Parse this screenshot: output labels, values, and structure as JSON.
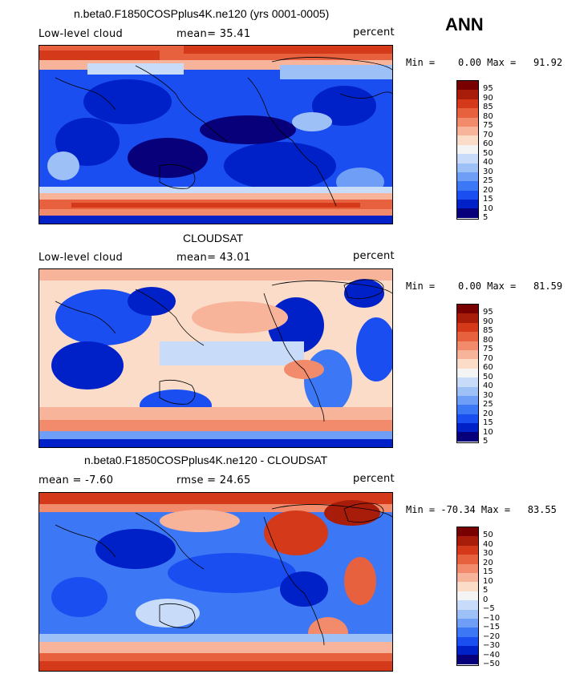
{
  "season": "ANN",
  "colors": {
    "scale": [
      "#08007a",
      "#0020c8",
      "#1a4ef0",
      "#3c78f5",
      "#6e9ef5",
      "#9dc0f7",
      "#c8dcfa",
      "#f4f4f4",
      "#fadcc8",
      "#f7b49b",
      "#f28b6b",
      "#e8613e",
      "#d43a1a",
      "#a81c0a",
      "#780000"
    ]
  },
  "panels": [
    {
      "title": "n.beta0.F1850COSPplus4K.ne120 (yrs 0001-0005)",
      "left_label": "Low-level cloud",
      "stat_label": "mean=  35.41",
      "units": "percent",
      "minmax": "Min =    0.00 Max =   91.92",
      "levels": [
        "95",
        "90",
        "85",
        "80",
        "75",
        "70",
        "60",
        "50",
        "40",
        "30",
        "25",
        "20",
        "15",
        "10",
        "5"
      ]
    },
    {
      "title": "CLOUDSAT",
      "left_label": "Low-level cloud",
      "stat_label": "mean=  43.01",
      "units": "percent",
      "minmax": "Min =    0.00 Max =   81.59",
      "levels": [
        "95",
        "90",
        "85",
        "80",
        "75",
        "70",
        "60",
        "50",
        "40",
        "30",
        "25",
        "20",
        "15",
        "10",
        "5"
      ]
    },
    {
      "title": "n.beta0.F1850COSPplus4K.ne120 - CLOUDSAT",
      "left_label": "mean =   -7.60",
      "stat_label": "rmse =  24.65",
      "units": "percent",
      "minmax": "Min = -70.34 Max =   83.55",
      "levels": [
        "50",
        "40",
        "30",
        "20",
        "15",
        "10",
        "5",
        "0",
        "−5",
        "−10",
        "−15",
        "−20",
        "−30",
        "−40",
        "−50"
      ]
    }
  ]
}
